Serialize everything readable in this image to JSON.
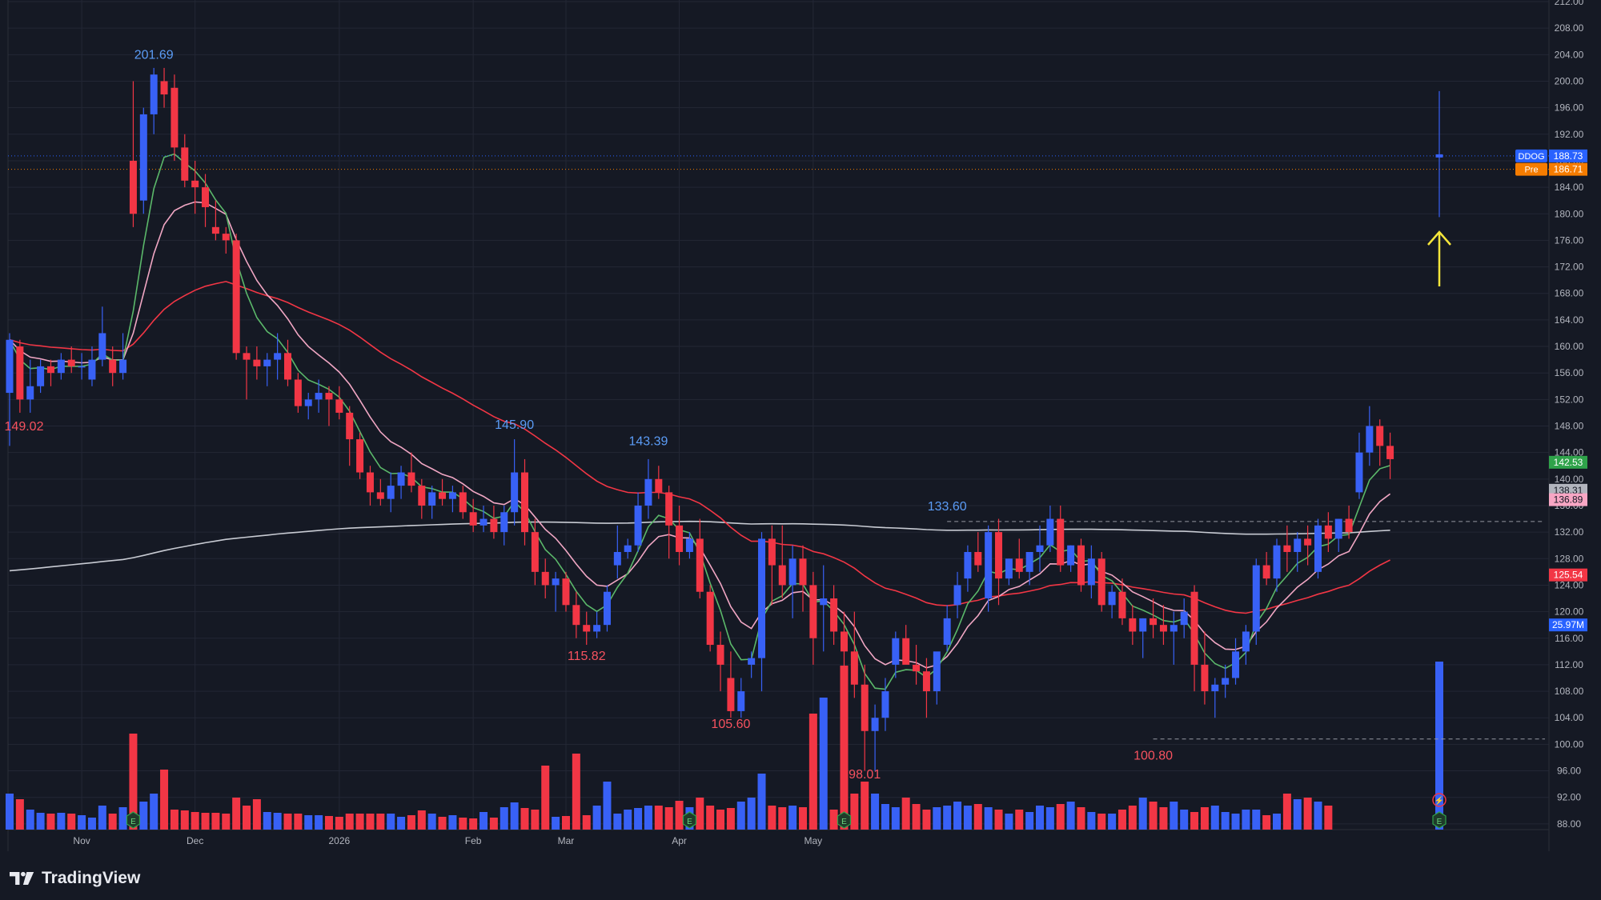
{
  "brand": {
    "name": "TradingView"
  },
  "chart_data": {
    "type": "candlestick",
    "ticker": "DDOG",
    "y_axis": {
      "min": 84,
      "max": 212,
      "step": 4,
      "tick_labels": [
        "88.00",
        "92.00",
        "96.00",
        "100.00",
        "104.00",
        "108.00",
        "112.00",
        "116.00",
        "120.00",
        "124.00",
        "128.00",
        "132.00",
        "136.00",
        "140.00",
        "144.00",
        "148.00",
        "152.00",
        "156.00",
        "160.00",
        "164.00",
        "168.00",
        "172.00",
        "176.00",
        "180.00",
        "184.00",
        "188.00",
        "192.00",
        "196.00",
        "200.00",
        "204.00",
        "208.00",
        "212.00"
      ]
    },
    "x_axis": {
      "tick_labels": [
        {
          "label": "Nov",
          "bar": 7
        },
        {
          "label": "Dec",
          "bar": 18
        },
        {
          "label": "2026",
          "bar": 32
        },
        {
          "label": "Feb",
          "bar": 45
        },
        {
          "label": "Mar",
          "bar": 54
        },
        {
          "label": "Apr",
          "bar": 65
        },
        {
          "label": "May",
          "bar": 78
        }
      ]
    },
    "candles": [
      [
        153,
        162,
        145,
        161
      ],
      [
        160,
        161,
        150,
        152
      ],
      [
        152,
        158,
        150,
        154
      ],
      [
        154,
        158,
        153,
        157
      ],
      [
        157,
        158,
        154,
        156
      ],
      [
        156,
        159,
        155,
        158
      ],
      [
        158,
        160,
        156,
        157
      ],
      [
        157,
        159,
        155,
        157
      ],
      [
        155,
        160,
        154,
        158
      ],
      [
        158,
        166,
        157,
        162
      ],
      [
        158,
        160,
        154,
        156
      ],
      [
        156,
        162,
        155,
        158
      ],
      [
        188,
        200,
        178,
        180
      ],
      [
        182,
        196,
        180,
        195
      ],
      [
        195,
        202,
        192,
        201
      ],
      [
        200,
        202,
        196,
        198
      ],
      [
        199,
        201,
        188,
        190
      ],
      [
        190,
        192,
        184,
        185
      ],
      [
        185,
        188,
        180,
        184
      ],
      [
        184,
        186,
        178,
        181
      ],
      [
        178,
        182,
        176,
        177
      ],
      [
        177,
        178,
        174,
        176
      ],
      [
        176,
        177,
        158,
        159
      ],
      [
        159,
        160,
        152,
        158
      ],
      [
        158,
        160,
        155,
        157
      ],
      [
        157,
        159,
        154,
        158
      ],
      [
        158,
        162,
        155,
        159
      ],
      [
        159,
        161,
        154,
        155
      ],
      [
        155,
        156,
        150,
        151
      ],
      [
        151,
        153,
        149,
        152
      ],
      [
        152,
        155,
        150,
        153
      ],
      [
        153,
        154,
        148,
        152
      ],
      [
        152,
        154,
        149,
        150
      ],
      [
        150,
        151,
        142,
        146
      ],
      [
        146,
        147,
        140,
        141
      ],
      [
        141,
        142,
        136,
        138
      ],
      [
        138,
        140,
        136,
        137
      ],
      [
        137,
        141,
        135,
        139
      ],
      [
        139,
        142,
        137,
        141
      ],
      [
        141,
        144,
        138,
        139
      ],
      [
        139,
        140,
        134,
        136
      ],
      [
        136,
        139,
        134,
        138
      ],
      [
        138,
        140,
        136,
        137
      ],
      [
        137,
        139,
        135,
        138
      ],
      [
        138,
        139,
        134,
        135
      ],
      [
        135,
        137,
        132,
        133
      ],
      [
        133,
        136,
        132,
        134
      ],
      [
        134,
        136,
        131,
        132
      ],
      [
        132,
        136,
        130,
        135
      ],
      [
        135,
        146,
        133,
        141
      ],
      [
        141,
        143,
        130,
        132
      ],
      [
        132,
        134,
        124,
        126
      ],
      [
        126,
        128,
        122,
        124
      ],
      [
        124,
        126,
        120,
        125
      ],
      [
        125,
        126,
        120,
        121
      ],
      [
        121,
        123,
        116,
        118
      ],
      [
        118,
        120,
        115,
        117
      ],
      [
        117,
        120,
        116,
        118
      ],
      [
        118,
        124,
        117,
        123
      ],
      [
        127,
        133,
        125,
        129
      ],
      [
        129,
        131,
        128,
        130
      ],
      [
        130,
        138,
        129,
        136
      ],
      [
        136,
        143,
        134,
        140
      ],
      [
        140,
        142,
        137,
        138
      ],
      [
        138,
        139,
        128,
        133
      ],
      [
        133,
        136,
        127,
        129
      ],
      [
        129,
        132,
        128,
        131
      ],
      [
        131,
        134,
        122,
        123
      ],
      [
        123,
        124,
        114,
        115
      ],
      [
        115,
        117,
        108,
        112
      ],
      [
        110,
        114,
        104,
        105
      ],
      [
        105,
        110,
        104,
        108
      ],
      [
        112,
        114,
        110,
        113
      ],
      [
        113,
        132,
        108,
        131
      ],
      [
        131,
        133,
        121,
        127
      ],
      [
        127,
        133,
        122,
        124
      ],
      [
        124,
        130,
        119,
        128
      ],
      [
        128,
        130,
        120,
        124
      ],
      [
        124,
        126,
        112,
        116
      ],
      [
        121,
        127,
        114,
        122
      ],
      [
        122,
        124,
        115,
        117
      ],
      [
        117,
        120,
        110,
        114
      ],
      [
        114,
        120,
        107,
        109
      ],
      [
        109,
        112,
        96,
        102
      ],
      [
        102,
        106,
        96,
        104
      ],
      [
        104,
        110,
        102,
        108
      ],
      [
        112,
        117,
        110,
        116
      ],
      [
        116,
        118,
        113,
        112
      ],
      [
        112,
        115,
        109,
        111
      ],
      [
        111,
        113,
        104,
        108
      ],
      [
        108,
        113,
        106,
        114
      ],
      [
        115,
        121,
        114,
        119
      ],
      [
        121,
        126,
        119,
        124
      ],
      [
        125,
        130,
        123,
        129
      ],
      [
        129,
        132,
        126,
        127
      ],
      [
        122,
        133,
        120,
        132
      ],
      [
        132,
        134,
        121,
        125
      ],
      [
        125,
        128,
        124,
        128
      ],
      [
        128,
        131,
        125,
        126
      ],
      [
        126,
        129,
        124,
        129
      ],
      [
        129,
        133,
        126,
        130
      ],
      [
        130,
        136,
        129,
        134
      ],
      [
        134,
        136,
        126,
        127
      ],
      [
        127,
        130,
        126,
        130
      ],
      [
        130,
        131,
        123,
        124
      ],
      [
        124,
        130,
        122,
        128
      ],
      [
        128,
        129,
        120,
        121
      ],
      [
        121,
        124,
        119,
        123
      ],
      [
        123,
        125,
        118,
        119
      ],
      [
        119,
        121,
        115,
        117
      ],
      [
        117,
        119,
        113,
        119
      ],
      [
        119,
        122,
        116,
        118
      ],
      [
        118,
        121,
        115,
        117
      ],
      [
        117,
        120,
        112,
        118
      ],
      [
        118,
        122,
        116,
        120
      ],
      [
        123,
        124,
        108,
        112
      ],
      [
        112,
        117,
        106,
        108
      ],
      [
        108,
        110,
        104,
        109
      ],
      [
        109,
        112,
        107,
        110
      ],
      [
        110,
        116,
        109,
        114
      ],
      [
        114,
        118,
        112,
        117
      ],
      [
        117,
        128,
        115,
        127
      ],
      [
        127,
        129,
        124,
        125
      ],
      [
        125,
        131,
        123,
        130
      ],
      [
        130,
        133,
        126,
        129
      ],
      [
        129,
        132,
        126,
        131
      ],
      [
        131,
        133,
        127,
        130
      ],
      [
        126,
        134,
        125,
        133
      ],
      [
        133,
        135,
        129,
        131
      ],
      [
        131,
        134,
        129,
        134
      ],
      [
        134,
        136,
        131,
        132
      ],
      [
        138,
        147,
        137,
        144
      ],
      [
        144,
        151,
        142,
        148
      ],
      [
        148,
        149,
        142,
        145
      ],
      [
        145,
        147,
        140,
        143
      ]
    ],
    "volume_heights": [
      45,
      38,
      25,
      21,
      20,
      21,
      20,
      18,
      15,
      30,
      20,
      28,
      40,
      35,
      45,
      28,
      25,
      24,
      22,
      21,
      21,
      20,
      40,
      30,
      38,
      22,
      21,
      20,
      20,
      18,
      18,
      17,
      16,
      20,
      20,
      20,
      20,
      20,
      16,
      18,
      24,
      20,
      16,
      18,
      15,
      14,
      22,
      15,
      28,
      34,
      27,
      25,
      20,
      16,
      17,
      20,
      18,
      30,
      60,
      20,
      25,
      27,
      30,
      30,
      28,
      36,
      28,
      40,
      30,
      25,
      27,
      35,
      40,
      70,
      30,
      28,
      30,
      28,
      30,
      35,
      25,
      28,
      45,
      60,
      45,
      32,
      28,
      40,
      32,
      25,
      28,
      30,
      35,
      30,
      32,
      28,
      25,
      20,
      25,
      22,
      30,
      28,
      32,
      35,
      28,
      22,
      20,
      20,
      25,
      30,
      40,
      35,
      28,
      35,
      25,
      22,
      28,
      30,
      22,
      20,
      25,
      25,
      18,
      20,
      45,
      38,
      40,
      35,
      30
    ],
    "volume_big": [
      [
        12,
        120
      ],
      [
        15,
        75
      ],
      [
        52,
        80
      ],
      [
        55,
        95
      ],
      [
        78,
        145
      ],
      [
        79,
        165
      ],
      [
        81,
        205
      ]
    ],
    "last_candle": {
      "open": 188.0,
      "high": 198.5,
      "low": 179.5,
      "close": 188.73
    },
    "last_volume_height": 210,
    "markers_labels": [
      {
        "text": "201.69",
        "bar": 14,
        "price": 201.69,
        "side": "high",
        "color": "#5b9cf6"
      },
      {
        "text": "145.90",
        "bar": 49,
        "price": 145.9,
        "side": "high",
        "color": "#5b9cf6"
      },
      {
        "text": "143.39",
        "bar": 62,
        "price": 143.39,
        "side": "high",
        "color": "#5b9cf6"
      },
      {
        "text": "133.60",
        "bar": 91,
        "price": 133.6,
        "side": "high",
        "color": "#5b9cf6"
      },
      {
        "text": "149.02",
        "bar": 0,
        "price": 150.5,
        "side": "low",
        "color": "#f7525f"
      },
      {
        "text": "115.82",
        "bar": 56,
        "price": 115.82,
        "side": "low",
        "color": "#f7525f"
      },
      {
        "text": "105.60",
        "bar": 70,
        "price": 105.6,
        "side": "low",
        "color": "#f7525f"
      },
      {
        "text": "98.01",
        "bar": 83,
        "price": 98.01,
        "side": "low",
        "color": "#f7525f"
      },
      {
        "text": "100.80",
        "bar": 111,
        "price": 100.8,
        "side": "low",
        "color": "#f7525f"
      }
    ],
    "price_tags": [
      {
        "prefix": "DDOG",
        "value": "188.73",
        "price": 188.73,
        "color": "#2962ff"
      },
      {
        "prefix": "Pre",
        "value": "186.71",
        "price": 186.71,
        "color": "#f57c00"
      },
      {
        "prefix": "",
        "value": "142.53",
        "price": 142.53,
        "color": "#2fa34a"
      },
      {
        "prefix": "",
        "value": "138.31",
        "price": 138.31,
        "color": "#b2b5be"
      },
      {
        "prefix": "",
        "value": "136.89",
        "price": 136.89,
        "color": "#f8a6c4"
      },
      {
        "prefix": "",
        "value": "125.54",
        "price": 125.54,
        "color": "#f23645"
      },
      {
        "prefix": "",
        "value": "25.97M",
        "price": 118.0,
        "color": "#2962ff"
      }
    ],
    "dashed_levels": [
      {
        "price": 133.6,
        "from_bar": 91
      },
      {
        "price": 100.8,
        "from_bar": 111
      }
    ],
    "colors": {
      "up": "#3861f6",
      "down": "#f23645",
      "background": "#151924",
      "grid": "#232735",
      "axis_text": "#b2b5be",
      "ma_green": "#5bb86a",
      "ma_pink": "#f1a7c4",
      "ma_red": "#f23645",
      "ma_white": "#c8cbd3",
      "arrow": "#f5e63b"
    },
    "earnings_markers": [
      12,
      66,
      81
    ],
    "earnings_label": "E"
  }
}
